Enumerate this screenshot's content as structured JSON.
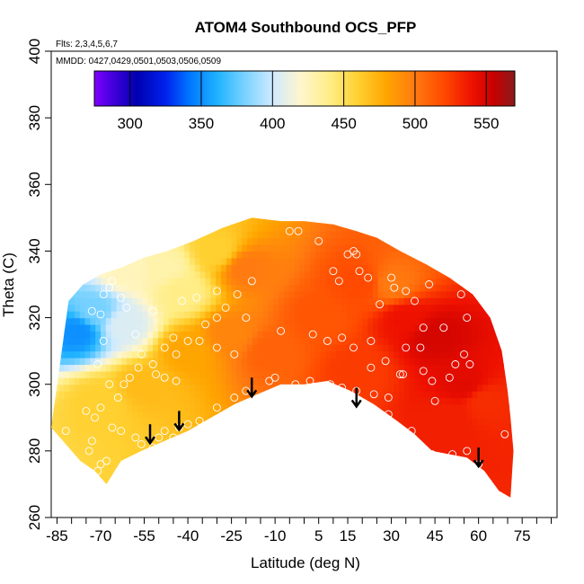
{
  "chart_data": {
    "type": "heatmap",
    "title": "ATOM4 Southbound OCS_PFP",
    "subtitle_flights": "Flts: 2,3,4,5,6,7",
    "subtitle_dates": "MMDD: 0427,0429,0501,0503,0506,0509",
    "xlabel": "Latitude (deg N)",
    "ylabel": "Theta (C)",
    "xlim": [
      -87,
      87
    ],
    "ylim": [
      260,
      400
    ],
    "x_ticks": [
      -85,
      -70,
      -55,
      -40,
      -25,
      -10,
      5,
      15,
      30,
      45,
      60,
      75
    ],
    "x_minor_ticks": [
      -80,
      -75,
      -65,
      -60,
      -50,
      -45,
      -35,
      -30,
      -20,
      -15,
      -5,
      0,
      10,
      20,
      25,
      35,
      40,
      50,
      55,
      65,
      70,
      80,
      85
    ],
    "y_ticks": [
      260,
      280,
      300,
      320,
      340,
      360,
      380,
      400
    ],
    "colorbar": {
      "range": [
        275,
        570
      ],
      "ticks": [
        300,
        350,
        400,
        450,
        500,
        550
      ],
      "colors": [
        [
          275,
          "#7f00ff"
        ],
        [
          290,
          "#3a00d8"
        ],
        [
          305,
          "#0000b0"
        ],
        [
          325,
          "#0022ee"
        ],
        [
          342,
          "#0077ff"
        ],
        [
          362,
          "#22b4ff"
        ],
        [
          382,
          "#80d4ff"
        ],
        [
          400,
          "#cfeaff"
        ],
        [
          420,
          "#fff6cc"
        ],
        [
          440,
          "#ffee88"
        ],
        [
          460,
          "#ffd030"
        ],
        [
          480,
          "#ffa500"
        ],
        [
          500,
          "#ff7a10"
        ],
        [
          520,
          "#ff4a00"
        ],
        [
          540,
          "#ee1100"
        ],
        [
          555,
          "#c80000"
        ],
        [
          570,
          "#8b1a1a"
        ]
      ]
    },
    "field": {
      "top_boundary": [
        [
          -81,
          325
        ],
        [
          -76,
          330
        ],
        [
          -70,
          333
        ],
        [
          -63,
          335
        ],
        [
          -55,
          338
        ],
        [
          -47,
          340
        ],
        [
          -38,
          343
        ],
        [
          -28,
          347
        ],
        [
          -18,
          350
        ],
        [
          -8,
          349
        ],
        [
          0,
          349
        ],
        [
          10,
          348
        ],
        [
          18,
          346
        ],
        [
          25,
          344
        ],
        [
          33,
          340
        ],
        [
          42,
          336
        ],
        [
          50,
          332
        ],
        [
          58,
          327
        ],
        [
          64,
          320
        ],
        [
          68,
          310
        ],
        [
          70,
          298
        ],
        [
          71,
          290
        ],
        [
          72,
          280
        ]
      ],
      "bottom_boundary": [
        [
          -87,
          287
        ],
        [
          -82,
          282
        ],
        [
          -77,
          277
        ],
        [
          -72,
          274
        ],
        [
          -68,
          270
        ],
        [
          -63,
          277
        ],
        [
          -56,
          280
        ],
        [
          -48,
          283
        ],
        [
          -40,
          286
        ],
        [
          -32,
          290
        ],
        [
          -24,
          294
        ],
        [
          -16,
          297
        ],
        [
          -8,
          300
        ],
        [
          0,
          300
        ],
        [
          8,
          301
        ],
        [
          16,
          298
        ],
        [
          24,
          294
        ],
        [
          32,
          289
        ],
        [
          38,
          285
        ],
        [
          44,
          280
        ],
        [
          50,
          279
        ],
        [
          56,
          278
        ],
        [
          62,
          274
        ],
        [
          67,
          268
        ],
        [
          71,
          266
        ]
      ],
      "value_regions": [
        {
          "x": -78,
          "y": 316,
          "value": 350
        },
        {
          "x": -72,
          "y": 322,
          "value": 380
        },
        {
          "x": -62,
          "y": 318,
          "value": 405
        },
        {
          "x": -60,
          "y": 334,
          "value": 425
        },
        {
          "x": -48,
          "y": 335,
          "value": 430
        },
        {
          "x": -42,
          "y": 328,
          "value": 440
        },
        {
          "x": -30,
          "y": 340,
          "value": 460
        },
        {
          "x": -70,
          "y": 295,
          "value": 460
        },
        {
          "x": -55,
          "y": 300,
          "value": 470
        },
        {
          "x": -40,
          "y": 310,
          "value": 480
        },
        {
          "x": -25,
          "y": 315,
          "value": 495
        },
        {
          "x": -20,
          "y": 335,
          "value": 500
        },
        {
          "x": -12,
          "y": 310,
          "value": 510
        },
        {
          "x": 5,
          "y": 320,
          "value": 515
        },
        {
          "x": 20,
          "y": 330,
          "value": 520
        },
        {
          "x": 18,
          "y": 305,
          "value": 525
        },
        {
          "x": 35,
          "y": 320,
          "value": 540
        },
        {
          "x": 45,
          "y": 315,
          "value": 550
        },
        {
          "x": 55,
          "y": 300,
          "value": 545
        },
        {
          "x": 50,
          "y": 290,
          "value": 535
        },
        {
          "x": 62,
          "y": 295,
          "value": 530
        },
        {
          "x": 30,
          "y": 330,
          "value": 500
        }
      ]
    },
    "sample_points": [
      [
        -82,
        286
      ],
      [
        -75,
        292
      ],
      [
        -73,
        283
      ],
      [
        -74,
        280
      ],
      [
        -71,
        274
      ],
      [
        -70,
        276
      ],
      [
        -68,
        277
      ],
      [
        -72,
        290
      ],
      [
        -70,
        293
      ],
      [
        -67,
        300
      ],
      [
        -71,
        306
      ],
      [
        -69,
        313
      ],
      [
        -70,
        321
      ],
      [
        -73,
        322
      ],
      [
        -69,
        327
      ],
      [
        -67,
        329
      ],
      [
        -66,
        331
      ],
      [
        -63,
        326
      ],
      [
        -61,
        323
      ],
      [
        -58,
        315
      ],
      [
        -56,
        309
      ],
      [
        -57,
        305
      ],
      [
        -60,
        302
      ],
      [
        -62,
        300
      ],
      [
        -64,
        296
      ],
      [
        -66,
        287
      ],
      [
        -63,
        286
      ],
      [
        -58,
        284
      ],
      [
        -56,
        282
      ],
      [
        -52,
        281
      ],
      [
        -50,
        284
      ],
      [
        -48,
        286
      ],
      [
        -45,
        284
      ],
      [
        -43,
        287
      ],
      [
        -40,
        288
      ],
      [
        -36,
        289
      ],
      [
        -30,
        293
      ],
      [
        -24,
        296
      ],
      [
        -20,
        298
      ],
      [
        -44,
        301
      ],
      [
        -48,
        302
      ],
      [
        -51,
        303
      ],
      [
        -52,
        306
      ],
      [
        -44,
        309
      ],
      [
        -40,
        313
      ],
      [
        -45,
        314
      ],
      [
        -48,
        311
      ],
      [
        -36,
        313
      ],
      [
        -30,
        311
      ],
      [
        -24,
        309
      ],
      [
        -34,
        318
      ],
      [
        -30,
        320
      ],
      [
        -27,
        323
      ],
      [
        -23,
        327
      ],
      [
        -18,
        331
      ],
      [
        -30,
        328
      ],
      [
        -37,
        326
      ],
      [
        -42,
        325
      ],
      [
        -52,
        322
      ],
      [
        -20,
        320
      ],
      [
        -12,
        301
      ],
      [
        -3,
        300
      ],
      [
        2,
        301
      ],
      [
        9,
        300
      ],
      [
        13,
        299
      ],
      [
        18,
        298
      ],
      [
        24,
        297
      ],
      [
        29,
        291
      ],
      [
        37,
        286
      ],
      [
        44,
        279
      ],
      [
        51,
        279
      ],
      [
        56,
        280
      ],
      [
        60,
        276
      ],
      [
        69,
        285
      ],
      [
        -5,
        346
      ],
      [
        -2,
        346
      ],
      [
        5,
        343
      ],
      [
        10,
        334
      ],
      [
        12,
        331
      ],
      [
        15,
        339
      ],
      [
        17,
        340
      ],
      [
        18,
        339
      ],
      [
        19,
        334
      ],
      [
        22,
        332
      ],
      [
        26,
        324
      ],
      [
        30,
        332
      ],
      [
        31,
        329
      ],
      [
        35,
        328
      ],
      [
        38,
        325
      ],
      [
        41,
        317
      ],
      [
        43,
        330
      ],
      [
        48,
        317
      ],
      [
        54,
        327
      ],
      [
        56,
        320
      ],
      [
        55,
        309
      ],
      [
        57,
        306
      ],
      [
        50,
        302
      ],
      [
        44,
        301
      ],
      [
        41,
        304
      ],
      [
        35,
        311
      ],
      [
        33,
        303
      ],
      [
        28,
        307
      ],
      [
        23,
        305
      ],
      [
        17,
        311
      ],
      [
        13,
        314
      ],
      [
        8,
        313
      ],
      [
        3,
        315
      ],
      [
        -8,
        316
      ],
      [
        -10,
        302
      ],
      [
        23,
        313
      ],
      [
        29,
        296
      ],
      [
        34,
        303
      ],
      [
        40,
        311
      ],
      [
        45,
        295
      ],
      [
        52,
        306
      ]
    ],
    "arrows": [
      [
        -53,
        288
      ],
      [
        -43,
        292
      ],
      [
        -18,
        302
      ],
      [
        18,
        299
      ],
      [
        60,
        281
      ]
    ]
  }
}
